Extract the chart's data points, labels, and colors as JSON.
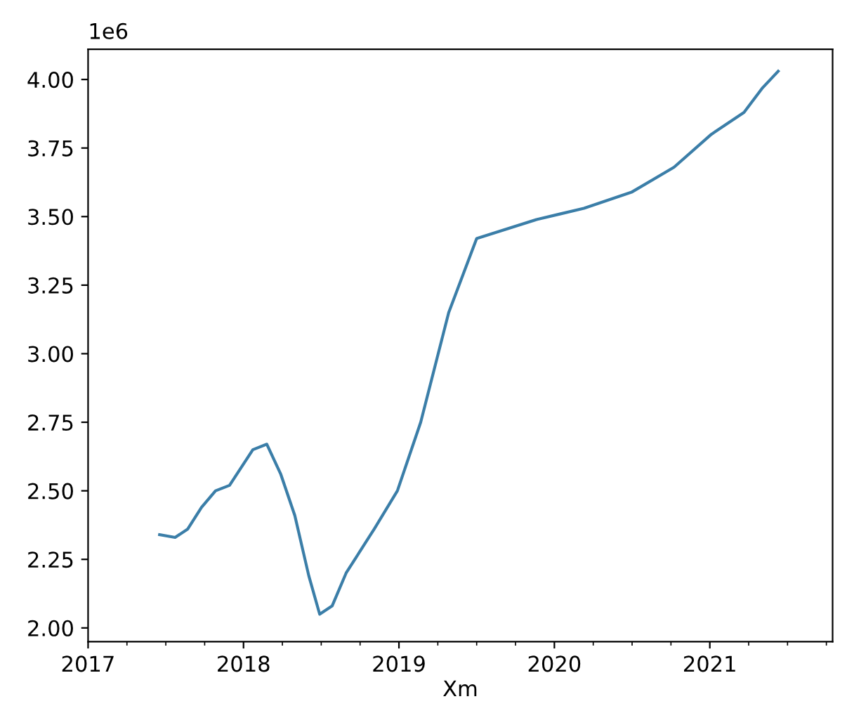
{
  "chart_data": {
    "type": "line",
    "xlabel": "Xm",
    "annotations": [
      "1e6"
    ],
    "x": [
      2017.46,
      2017.56,
      2017.64,
      2017.73,
      2017.82,
      2017.91,
      2018.06,
      2018.15,
      2018.24,
      2018.33,
      2018.42,
      2018.49,
      2018.57,
      2018.66,
      2018.84,
      2018.99,
      2019.14,
      2019.32,
      2019.5,
      2019.89,
      2020.04,
      2020.19,
      2020.5,
      2020.77,
      2021.01,
      2021.22,
      2021.34,
      2021.44
    ],
    "series": [
      {
        "color": "#3b7ea8",
        "values": [
          2.34,
          2.33,
          2.36,
          2.44,
          2.5,
          2.52,
          2.65,
          2.67,
          2.56,
          2.41,
          2.19,
          2.05,
          2.08,
          2.2,
          2.36,
          2.5,
          2.75,
          3.15,
          3.42,
          3.49,
          3.51,
          3.53,
          3.59,
          3.68,
          3.8,
          3.88,
          3.97,
          4.03
        ]
      }
    ],
    "xlim": [
      2017,
      2021.79
    ],
    "ylim": [
      1.95,
      4.11
    ],
    "xticks": [
      2017,
      {
        "value": 2017.25,
        "label": null
      },
      {
        "value": 2017.5,
        "label": null
      },
      {
        "value": 2017.75,
        "label": null
      },
      2018,
      {
        "value": 2018.25,
        "label": null
      },
      {
        "value": 2018.5,
        "label": null
      },
      {
        "value": 2018.75,
        "label": null
      },
      2019,
      {
        "value": 2019.25,
        "label": null
      },
      {
        "value": 2019.5,
        "label": null
      },
      {
        "value": 2019.75,
        "label": null
      },
      2020,
      {
        "value": 2020.25,
        "label": null
      },
      {
        "value": 2020.5,
        "label": null
      },
      {
        "value": 2020.75,
        "label": null
      },
      2021,
      {
        "value": 2021.25,
        "label": null
      },
      {
        "value": 2021.5,
        "label": null
      },
      {
        "value": 2021.75,
        "label": null
      }
    ],
    "yticks": [
      {
        "value": 2.0,
        "label": "2.00"
      },
      {
        "value": 2.25,
        "label": "2.25"
      },
      {
        "value": 2.5,
        "label": "2.50"
      },
      {
        "value": 2.75,
        "label": "2.75"
      },
      {
        "value": 3.0,
        "label": "3.00"
      },
      {
        "value": 3.25,
        "label": "3.25"
      },
      {
        "value": 3.5,
        "label": "3.50"
      },
      {
        "value": 3.75,
        "label": "3.75"
      },
      {
        "value": 4.0,
        "label": "4.00"
      }
    ],
    "grid": false,
    "marker": "none",
    "line_style": "solid"
  }
}
